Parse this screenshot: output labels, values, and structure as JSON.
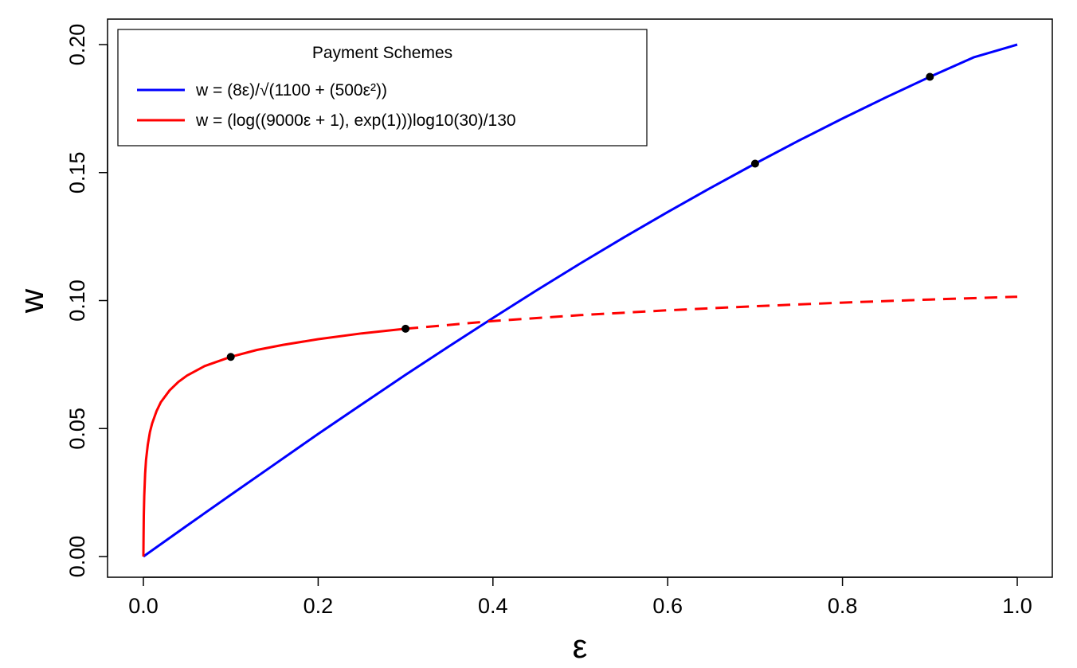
{
  "chart_data": {
    "type": "line",
    "xlabel": "ε",
    "ylabel": "w",
    "xlim": [
      0.0,
      1.0
    ],
    "ylim": [
      0.0,
      0.2
    ],
    "x_ticks": [
      "0.0",
      "0.2",
      "0.4",
      "0.6",
      "0.8",
      "1.0"
    ],
    "y_ticks": [
      "0.00",
      "0.05",
      "0.10",
      "0.15",
      "0.20"
    ],
    "grid": false,
    "legend": {
      "title": "Payment Schemes",
      "placement": "top-left",
      "entries": [
        {
          "label": "w = (8ε)/√(1100 + (500ε²))",
          "color": "#0000ff"
        },
        {
          "label": "w = (log((9000ε + 1), exp(1)))log10(30)/130",
          "color": "#ff0000"
        }
      ]
    },
    "series": [
      {
        "name": "w = (8ε)/√(1100 + (500ε²))",
        "color": "#0000ff",
        "style": "solid",
        "x": [
          0.0,
          0.05,
          0.1,
          0.15,
          0.2,
          0.25,
          0.3,
          0.35,
          0.4,
          0.45,
          0.5,
          0.55,
          0.6,
          0.65,
          0.7,
          0.75,
          0.8,
          0.85,
          0.9,
          0.95,
          1.0
        ],
        "y": [
          0.0,
          0.0121,
          0.0241,
          0.036,
          0.0479,
          0.0595,
          0.071,
          0.0822,
          0.0932,
          0.104,
          0.1145,
          0.1247,
          0.1346,
          0.1442,
          0.1535,
          0.1625,
          0.1711,
          0.1794,
          0.1874,
          0.195,
          0.2
        ]
      },
      {
        "name": "w = (log((9000ε + 1), exp(1)))log10(30)/130",
        "color": "#ff0000",
        "style": "solid",
        "x": [
          0.0,
          0.0002,
          0.0005,
          0.001,
          0.002,
          0.003,
          0.005,
          0.0075,
          0.01,
          0.015,
          0.02,
          0.03,
          0.04,
          0.05,
          0.07,
          0.1,
          0.13,
          0.16,
          0.2,
          0.25,
          0.3
        ],
        "y": [
          0.0,
          0.0073,
          0.0159,
          0.0238,
          0.0324,
          0.0377,
          0.0436,
          0.0486,
          0.052,
          0.0568,
          0.0603,
          0.0649,
          0.0682,
          0.0707,
          0.0744,
          0.078,
          0.0807,
          0.0827,
          0.0849,
          0.0872,
          0.089
        ]
      },
      {
        "name": "w = (log((9000ε + 1), exp(1)))log10(30)/130",
        "color": "#ff0000",
        "style": "dashed",
        "x": [
          0.3,
          0.4,
          0.5,
          0.6,
          0.7,
          0.8,
          0.9,
          1.0
        ],
        "y": [
          0.089,
          0.092,
          0.0943,
          0.0962,
          0.0978,
          0.0992,
          0.1004,
          0.1015
        ]
      }
    ],
    "points": [
      {
        "x": 0.1,
        "y": 0.078
      },
      {
        "x": 0.3,
        "y": 0.089
      },
      {
        "x": 0.7,
        "y": 0.1535
      },
      {
        "x": 0.9,
        "y": 0.1874
      }
    ]
  }
}
